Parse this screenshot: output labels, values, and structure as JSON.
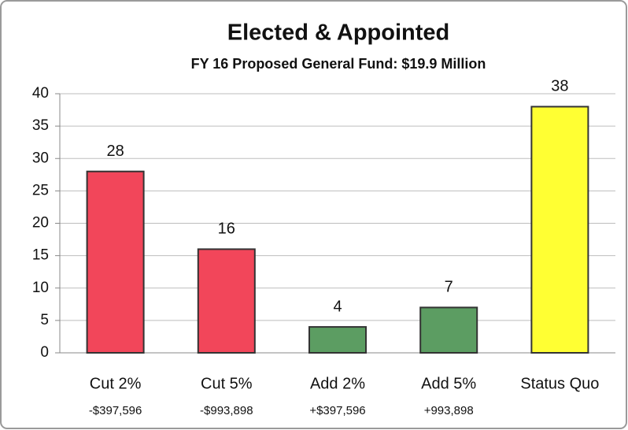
{
  "chart_data": {
    "type": "bar",
    "title": "Elected & Appointed",
    "subtitle": "FY 16 Proposed General Fund:  $19.9 Million",
    "categories": [
      "Cut 2%",
      "Cut 5%",
      "Add 2%",
      "Add 5%",
      "Status Quo"
    ],
    "sublabels": [
      "-$397,596",
      "-$993,898",
      "+$397,596",
      "+993,898",
      null
    ],
    "values": [
      28,
      16,
      4,
      7,
      38
    ],
    "colors": [
      "#f2465a",
      "#f2465a",
      "#5c9d62",
      "#5c9d62",
      "#ffff33"
    ],
    "ylim": [
      0,
      40
    ],
    "yticks": [
      0,
      5,
      10,
      15,
      20,
      25,
      30,
      35,
      40
    ],
    "grid": true
  }
}
